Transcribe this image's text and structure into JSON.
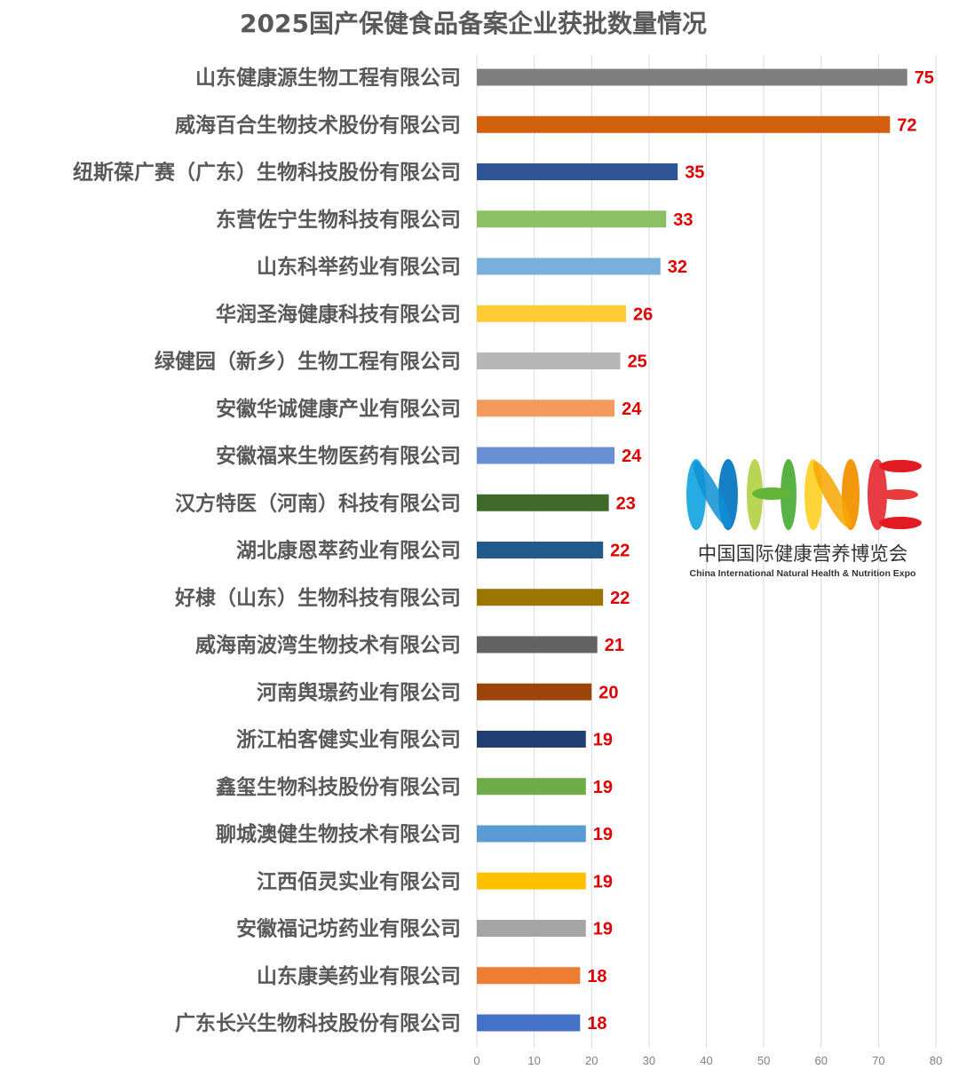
{
  "chart_data": {
    "type": "bar",
    "orientation": "horizontal",
    "title": "2025国产保健食品备案企业获批数量情况",
    "xlabel": "",
    "ylabel": "",
    "xlim": [
      0,
      80
    ],
    "ticks": [
      0,
      10,
      20,
      30,
      40,
      50,
      60,
      70,
      80
    ],
    "grid": true,
    "legend": "none",
    "categories": [
      "山东健康源生物工程有限公司",
      "威海百合生物技术股份有限公司",
      "纽斯葆广赛（广东）生物科技股份有限公司",
      "东营佐宁生物科技有限公司",
      "山东科举药业有限公司",
      "华润圣海健康科技有限公司",
      "绿健园（新乡）生物工程有限公司",
      "安徽华诚健康产业有限公司",
      "安徽福来生物医药有限公司",
      "汉方特医（河南）科技有限公司",
      "湖北康恩萃药业有限公司",
      "好棣（山东）生物科技有限公司",
      "威海南波湾生物技术有限公司",
      "河南舆璟药业有限公司",
      "浙江柏客健实业有限公司",
      "鑫玺生物科技股份有限公司",
      "聊城澳健生物技术有限公司",
      "江西佰灵实业有限公司",
      "安徽福记坊药业有限公司",
      "山东康美药业有限公司",
      "广东长兴生物科技股份有限公司"
    ],
    "values": [
      75,
      72,
      35,
      33,
      32,
      26,
      25,
      24,
      24,
      23,
      22,
      22,
      21,
      20,
      19,
      19,
      19,
      19,
      19,
      18,
      18
    ],
    "bar_colors": [
      "#7f7f7f",
      "#d2600f",
      "#2f5597",
      "#8bc063",
      "#7aaedd",
      "#ffcc33",
      "#b7b7b7",
      "#f39a5c",
      "#6b8fd4",
      "#3f6a2a",
      "#225a8c",
      "#9a7500",
      "#636363",
      "#9b4509",
      "#223f74",
      "#6fab46",
      "#5b9bd5",
      "#ffc000",
      "#a5a5a5",
      "#ed7d31",
      "#4472c4"
    ],
    "value_label_color": "#e00000"
  },
  "logo": {
    "letters": "NHNE",
    "name_cn": "中国国际健康营养博览会",
    "name_en": "China International Natural Health & Nutrition Expo"
  }
}
